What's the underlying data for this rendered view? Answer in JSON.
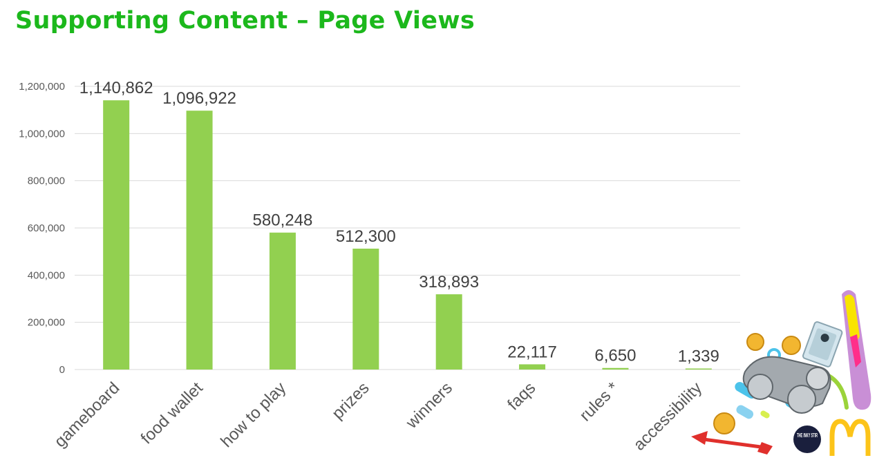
{
  "slide": {
    "title": "Supporting Content – Page Views"
  },
  "chart_data": {
    "type": "bar",
    "title": "",
    "xlabel": "",
    "ylabel": "",
    "categories": [
      "gameboard",
      "food wallet",
      "how to play",
      "prizes",
      "winners",
      "faqs",
      "rules *",
      "accessibility"
    ],
    "values": [
      1140862,
      1096922,
      580248,
      512300,
      318893,
      22117,
      6650,
      1339
    ],
    "data_labels": [
      "1,140,862",
      "1,096,922",
      "580,248",
      "512,300",
      "318,893",
      "22,117",
      "6,650",
      "1,339"
    ],
    "y_ticks": [
      "0",
      "200,000",
      "400,000",
      "600,000",
      "800,000",
      "1,000,000",
      "1,200,000"
    ],
    "ylim": [
      0,
      1200000
    ],
    "grid": true,
    "legend": "none",
    "bar_color": "#92d050",
    "grid_color": "#d9d9d9"
  },
  "decoration": {
    "logo_text": "THE INKY STIR",
    "icons": [
      "monopoly-car-icon",
      "gold-coin-icon",
      "money-bill-icon",
      "red-arrow-icon",
      "golden-arches-logo"
    ]
  }
}
